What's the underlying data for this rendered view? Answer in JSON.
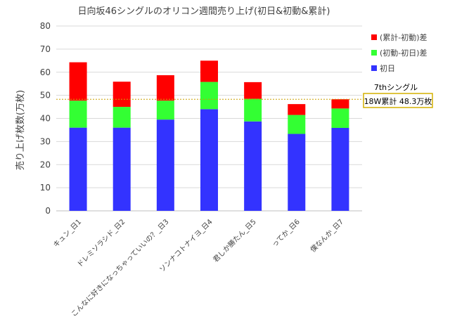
{
  "chart_data": {
    "type": "bar",
    "stacked": true,
    "title": "日向坂46シングルのオリコン週間売り上げ(初日&初動&累計)",
    "ylabel": "売り上げ枚数(万枚)",
    "xlabel": "",
    "ylim": [
      0,
      80
    ],
    "yticks": [
      0,
      10,
      20,
      30,
      40,
      50,
      60,
      70,
      80
    ],
    "grid": true,
    "legend_position": "right",
    "categories": [
      "キュン_日1",
      "ドレミソラシド_日2",
      "こんなに好きになっちゃっていいの？_日3",
      "ソンナコトナイヨ_日4",
      "君しか勝たん_日5",
      "ってか_日6",
      "僕なんか_日7"
    ],
    "series": [
      {
        "name": "初日",
        "color": "#3333FF",
        "values": [
          36.0,
          36.0,
          39.5,
          44.0,
          38.7,
          33.3,
          35.9
        ]
      },
      {
        "name": "(初動-初日)差",
        "color": "#33FF33",
        "values": [
          11.7,
          9.0,
          8.2,
          11.8,
          9.8,
          8.2,
          8.4
        ]
      },
      {
        "name": "(累計-初動)差",
        "color": "#FF0000",
        "values": [
          16.6,
          10.9,
          11.0,
          9.2,
          7.2,
          4.7,
          4.0
        ]
      }
    ],
    "reference_line": {
      "value": 48.3,
      "color": "#C9A000"
    },
    "annotation": {
      "title": "7thシングル",
      "text": "18W累計 48.3万枚"
    }
  }
}
